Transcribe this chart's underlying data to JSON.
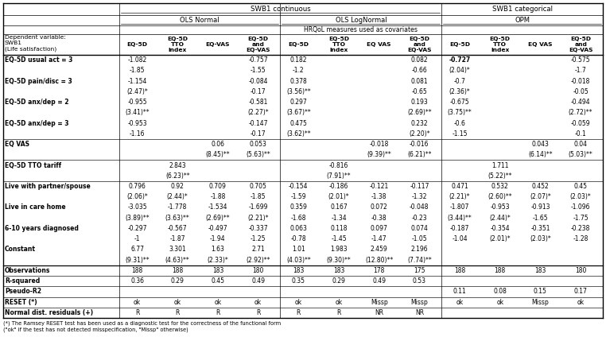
{
  "col_headers": [
    "Dependent variable:\nSWB1\n(Life satisfaction)",
    "EQ-5D",
    "EQ-5D\nTTO\nindex",
    "EQ-VAS",
    "EQ-5D\nand\nEQ-VAS",
    "EQ-5D",
    "EQ-5D\nTTO\nindex",
    "EQ VAS",
    "EQ-5D\nand\nEQ-VAS",
    "EQ-5D",
    "EQ-5D\nTTO\nindex",
    "EQ VAS",
    "EQ-5D\nand\nEQ-VAS"
  ],
  "rows": [
    [
      "EQ-5D usual act = 3",
      "-1.082",
      "",
      "",
      "-0.757",
      "0.182",
      "",
      "",
      "0.082",
      "-0.727",
      "",
      "",
      "-0.575"
    ],
    [
      "",
      "-1.85",
      "",
      "",
      "-1.55",
      "-1.2",
      "",
      "",
      "-0.66",
      "(2.04)*",
      "",
      "",
      "-1.7"
    ],
    [
      "EQ-5D pain/disc = 3",
      "-1.154",
      "",
      "",
      "-0.084",
      "0.378",
      "",
      "",
      "0.081",
      "-0.7",
      "",
      "",
      "-0.018"
    ],
    [
      "",
      "(2.47)*",
      "",
      "",
      "-0.17",
      "(3.56)**",
      "",
      "",
      "-0.65",
      "(2.36)*",
      "",
      "",
      "-0.05"
    ],
    [
      "EQ-5D anx/dep = 2",
      "-0.955",
      "",
      "",
      "-0.581",
      "0.297",
      "",
      "",
      "0.193",
      "-0.675",
      "",
      "",
      "-0.494"
    ],
    [
      "",
      "(3.41)**",
      "",
      "",
      "(2.27)*",
      "(3.67)**",
      "",
      "",
      "(2.69)**",
      "(3.75)**",
      "",
      "",
      "(2.72)**"
    ],
    [
      "EQ-5D anx/dep = 3",
      "-0.953",
      "",
      "",
      "-0.147",
      "0.475",
      "",
      "",
      "0.232",
      "-0.6",
      "",
      "",
      "-0.059"
    ],
    [
      "",
      "-1.16",
      "",
      "",
      "-0.17",
      "(3.62)**",
      "",
      "",
      "(2.20)*",
      "-1.15",
      "",
      "",
      "-0.1"
    ],
    [
      "EQ VAS",
      "",
      "",
      "0.06",
      "0.053",
      "",
      "",
      "-0.018",
      "-0.016",
      "",
      "",
      "0.043",
      "0.04"
    ],
    [
      "",
      "",
      "",
      "(8.45)**",
      "(5.63)**",
      "",
      "",
      "(9.39)**",
      "(6.21)**",
      "",
      "",
      "(6.14)**",
      "(5.03)**"
    ],
    [
      "EQ-5D TTO tariff",
      "",
      "2.843",
      "",
      "",
      "",
      "-0.816",
      "",
      "",
      "",
      "1.711",
      "",
      ""
    ],
    [
      "",
      "",
      "(6.23)**",
      "",
      "",
      "",
      "(7.91)**",
      "",
      "",
      "",
      "(5.22)**",
      "",
      ""
    ],
    [
      "Live with partner/spouse",
      "0.796",
      "0.92",
      "0.709",
      "0.705",
      "-0.154",
      "-0.186",
      "-0.121",
      "-0.117",
      "0.471",
      "0.532",
      "0.452",
      "0.45"
    ],
    [
      "",
      "(2.06)*",
      "(2.44)*",
      "-1.88",
      "-1.85",
      "-1.59",
      "(2.01)*",
      "-1.38",
      "-1.32",
      "(2.21)*",
      "(2.60)**",
      "(2.07)*",
      "(2.03)*"
    ],
    [
      "Live in care home",
      "-3.035",
      "-1.778",
      "-1.534",
      "-1.699",
      "0.359",
      "0.167",
      "0.072",
      "-0.048",
      "-1.807",
      "-0.953",
      "-0.913",
      "-1.096"
    ],
    [
      "",
      "(3.89)**",
      "(3.63)**",
      "(2.69)**",
      "(2.21)*",
      "-1.68",
      "-1.34",
      "-0.38",
      "-0.23",
      "(3.44)**",
      "(2.44)*",
      "-1.65",
      "-1.75"
    ],
    [
      "6-10 years diagnosed",
      "-0.297",
      "-0.567",
      "-0.497",
      "-0.337",
      "0.063",
      "0.118",
      "0.097",
      "0.074",
      "-0.187",
      "-0.354",
      "-0.351",
      "-0.238"
    ],
    [
      "",
      "-1",
      "-1.87",
      "-1.94",
      "-1.25",
      "-0.78",
      "-1.45",
      "-1.47",
      "-1.05",
      "-1.04",
      "(2.01)*",
      "(2.03)*",
      "-1.28"
    ],
    [
      "Constant",
      "6.77",
      "3.301",
      "1.63",
      "2.71",
      "1.01",
      "1.983",
      "2.459",
      "2.196",
      "",
      "",
      "",
      ""
    ],
    [
      "",
      "(9.31)**",
      "(4.63)**",
      "(2.33)*",
      "(2.92)**",
      "(4.03)**",
      "(9.30)**",
      "(12.80)**",
      "(7.74)**",
      "",
      "",
      "",
      ""
    ],
    [
      "Observations",
      "188",
      "188",
      "183",
      "180",
      "183",
      "183",
      "178",
      "175",
      "188",
      "188",
      "183",
      "180"
    ],
    [
      "R-squared",
      "0.36",
      "0.29",
      "0.45",
      "0.49",
      "0.35",
      "0.29",
      "0.49",
      "0.53",
      "",
      "",
      "",
      ""
    ],
    [
      "Pseudo-R2",
      "",
      "",
      "",
      "",
      "",
      "",
      "",
      "",
      "0.11",
      "0.08",
      "0.15",
      "0.17"
    ],
    [
      "RESET (*)",
      "ok",
      "ok",
      "ok",
      "ok",
      "ok",
      "ok",
      "Missp",
      "Missp",
      "ok",
      "ok",
      "Missp",
      "ok"
    ],
    [
      "Normal dist. residuals (+)",
      "R",
      "R",
      "R",
      "R",
      "R",
      "R",
      "NR",
      "NR",
      "",
      "",
      "",
      ""
    ]
  ],
  "col_widths_rel": [
    2.3,
    0.72,
    0.88,
    0.72,
    0.88,
    0.72,
    0.88,
    0.72,
    0.88,
    0.72,
    0.88,
    0.72,
    0.88
  ],
  "footnote_line1": "(*) The Ramsey RESET test has been used as a diagnostic test for the correctness of the functional form",
  "footnote_line2": "(\"ok\" if the test has not detected misspecification, \"Missp\" otherwise)"
}
